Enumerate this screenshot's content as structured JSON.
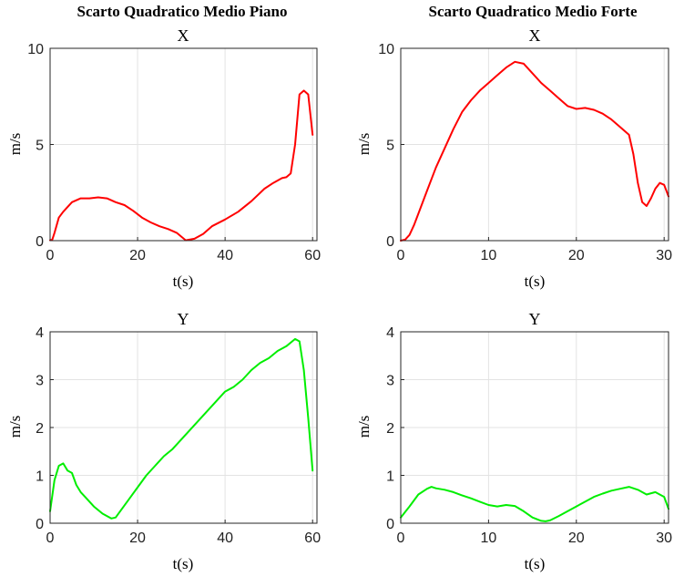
{
  "figure_titles": {
    "left": "Scarto Quadratico Medio Piano",
    "right": "Scarto Quadratico Medio Forte"
  },
  "chart_data": [
    {
      "id": "tl",
      "type": "line",
      "title": "X",
      "xlabel": "t(s)",
      "ylabel": "m/s",
      "xlim": [
        0,
        61
      ],
      "ylim": [
        0,
        10
      ],
      "xticks": [
        0,
        20,
        40,
        60
      ],
      "yticks": [
        0,
        5,
        10
      ],
      "grid": true,
      "color": "#ff0000",
      "series": [
        {
          "x": [
            0,
            0.5,
            1,
            2,
            3,
            5,
            7,
            9,
            11,
            13,
            15,
            17,
            19,
            21,
            23,
            25,
            27,
            29,
            31,
            33,
            35,
            37,
            40,
            43,
            46,
            49,
            51,
            53,
            54,
            55,
            56,
            57,
            58,
            59,
            60
          ],
          "y": [
            0.02,
            0.05,
            0.4,
            1.2,
            1.5,
            2.0,
            2.2,
            2.2,
            2.25,
            2.2,
            2.0,
            1.85,
            1.55,
            1.2,
            0.95,
            0.75,
            0.6,
            0.4,
            0.02,
            0.1,
            0.35,
            0.75,
            1.1,
            1.5,
            2.05,
            2.7,
            3.0,
            3.25,
            3.3,
            3.5,
            5.0,
            7.6,
            7.8,
            7.6,
            5.5
          ]
        }
      ]
    },
    {
      "id": "tr",
      "type": "line",
      "title": "X",
      "xlabel": "t(s)",
      "ylabel": "m/s",
      "xlim": [
        0,
        30.5
      ],
      "ylim": [
        0,
        10
      ],
      "xticks": [
        0,
        10,
        20,
        30
      ],
      "yticks": [
        0,
        5,
        10
      ],
      "grid": true,
      "color": "#ff0000",
      "series": [
        {
          "x": [
            0,
            0.5,
            1,
            1.5,
            2,
            3,
            4,
            5,
            6,
            7,
            8,
            9,
            10,
            11,
            12,
            13,
            14,
            15,
            16,
            17,
            18,
            19,
            20,
            21,
            22,
            23,
            24,
            25,
            26,
            26.5,
            27,
            27.5,
            28,
            28.5,
            29,
            29.5,
            30,
            30.5
          ],
          "y": [
            0,
            0.05,
            0.3,
            0.8,
            1.4,
            2.6,
            3.8,
            4.8,
            5.8,
            6.7,
            7.3,
            7.8,
            8.2,
            8.6,
            9.0,
            9.3,
            9.2,
            8.7,
            8.2,
            7.8,
            7.4,
            7.0,
            6.85,
            6.9,
            6.8,
            6.6,
            6.3,
            5.9,
            5.5,
            4.5,
            3.0,
            2.0,
            1.8,
            2.2,
            2.7,
            3.0,
            2.9,
            2.3
          ]
        }
      ]
    },
    {
      "id": "bl",
      "type": "line",
      "title": "Y",
      "xlabel": "t(s)",
      "ylabel": "m/s",
      "xlim": [
        0,
        61
      ],
      "ylim": [
        0,
        4
      ],
      "xticks": [
        0,
        20,
        40,
        60
      ],
      "yticks": [
        0,
        1,
        2,
        3,
        4
      ],
      "grid": true,
      "color": "#00ee00",
      "series": [
        {
          "x": [
            0,
            1,
            2,
            3,
            4,
            5,
            6,
            7,
            8,
            10,
            12,
            14,
            15,
            16,
            18,
            20,
            22,
            24,
            26,
            28,
            30,
            32,
            34,
            36,
            38,
            40,
            42,
            44,
            46,
            48,
            50,
            52,
            54,
            56,
            57,
            58,
            59,
            60
          ],
          "y": [
            0.25,
            0.9,
            1.2,
            1.25,
            1.1,
            1.05,
            0.8,
            0.65,
            0.55,
            0.35,
            0.2,
            0.1,
            0.12,
            0.25,
            0.5,
            0.75,
            1.0,
            1.2,
            1.4,
            1.55,
            1.75,
            1.95,
            2.15,
            2.35,
            2.55,
            2.75,
            2.85,
            3.0,
            3.2,
            3.35,
            3.45,
            3.6,
            3.7,
            3.85,
            3.8,
            3.2,
            2.2,
            1.1
          ]
        }
      ]
    },
    {
      "id": "br",
      "type": "line",
      "title": "Y",
      "xlabel": "t(s)",
      "ylabel": "m/s",
      "xlim": [
        0,
        30.5
      ],
      "ylim": [
        0,
        4
      ],
      "xticks": [
        0,
        10,
        20,
        30
      ],
      "yticks": [
        0,
        1,
        2,
        3,
        4
      ],
      "grid": true,
      "color": "#00ee00",
      "series": [
        {
          "x": [
            0,
            1,
            2,
            3,
            3.5,
            4,
            5,
            6,
            7,
            8,
            9,
            10,
            11,
            12,
            13,
            14,
            15,
            16,
            16.5,
            17,
            18,
            19,
            20,
            21,
            22,
            23,
            24,
            25,
            26,
            27,
            28,
            29,
            30,
            30.5
          ],
          "y": [
            0.12,
            0.35,
            0.6,
            0.72,
            0.76,
            0.73,
            0.7,
            0.65,
            0.58,
            0.52,
            0.45,
            0.38,
            0.35,
            0.38,
            0.36,
            0.25,
            0.12,
            0.05,
            0.04,
            0.06,
            0.15,
            0.25,
            0.35,
            0.45,
            0.55,
            0.62,
            0.68,
            0.72,
            0.76,
            0.7,
            0.6,
            0.65,
            0.55,
            0.3
          ]
        }
      ]
    }
  ]
}
